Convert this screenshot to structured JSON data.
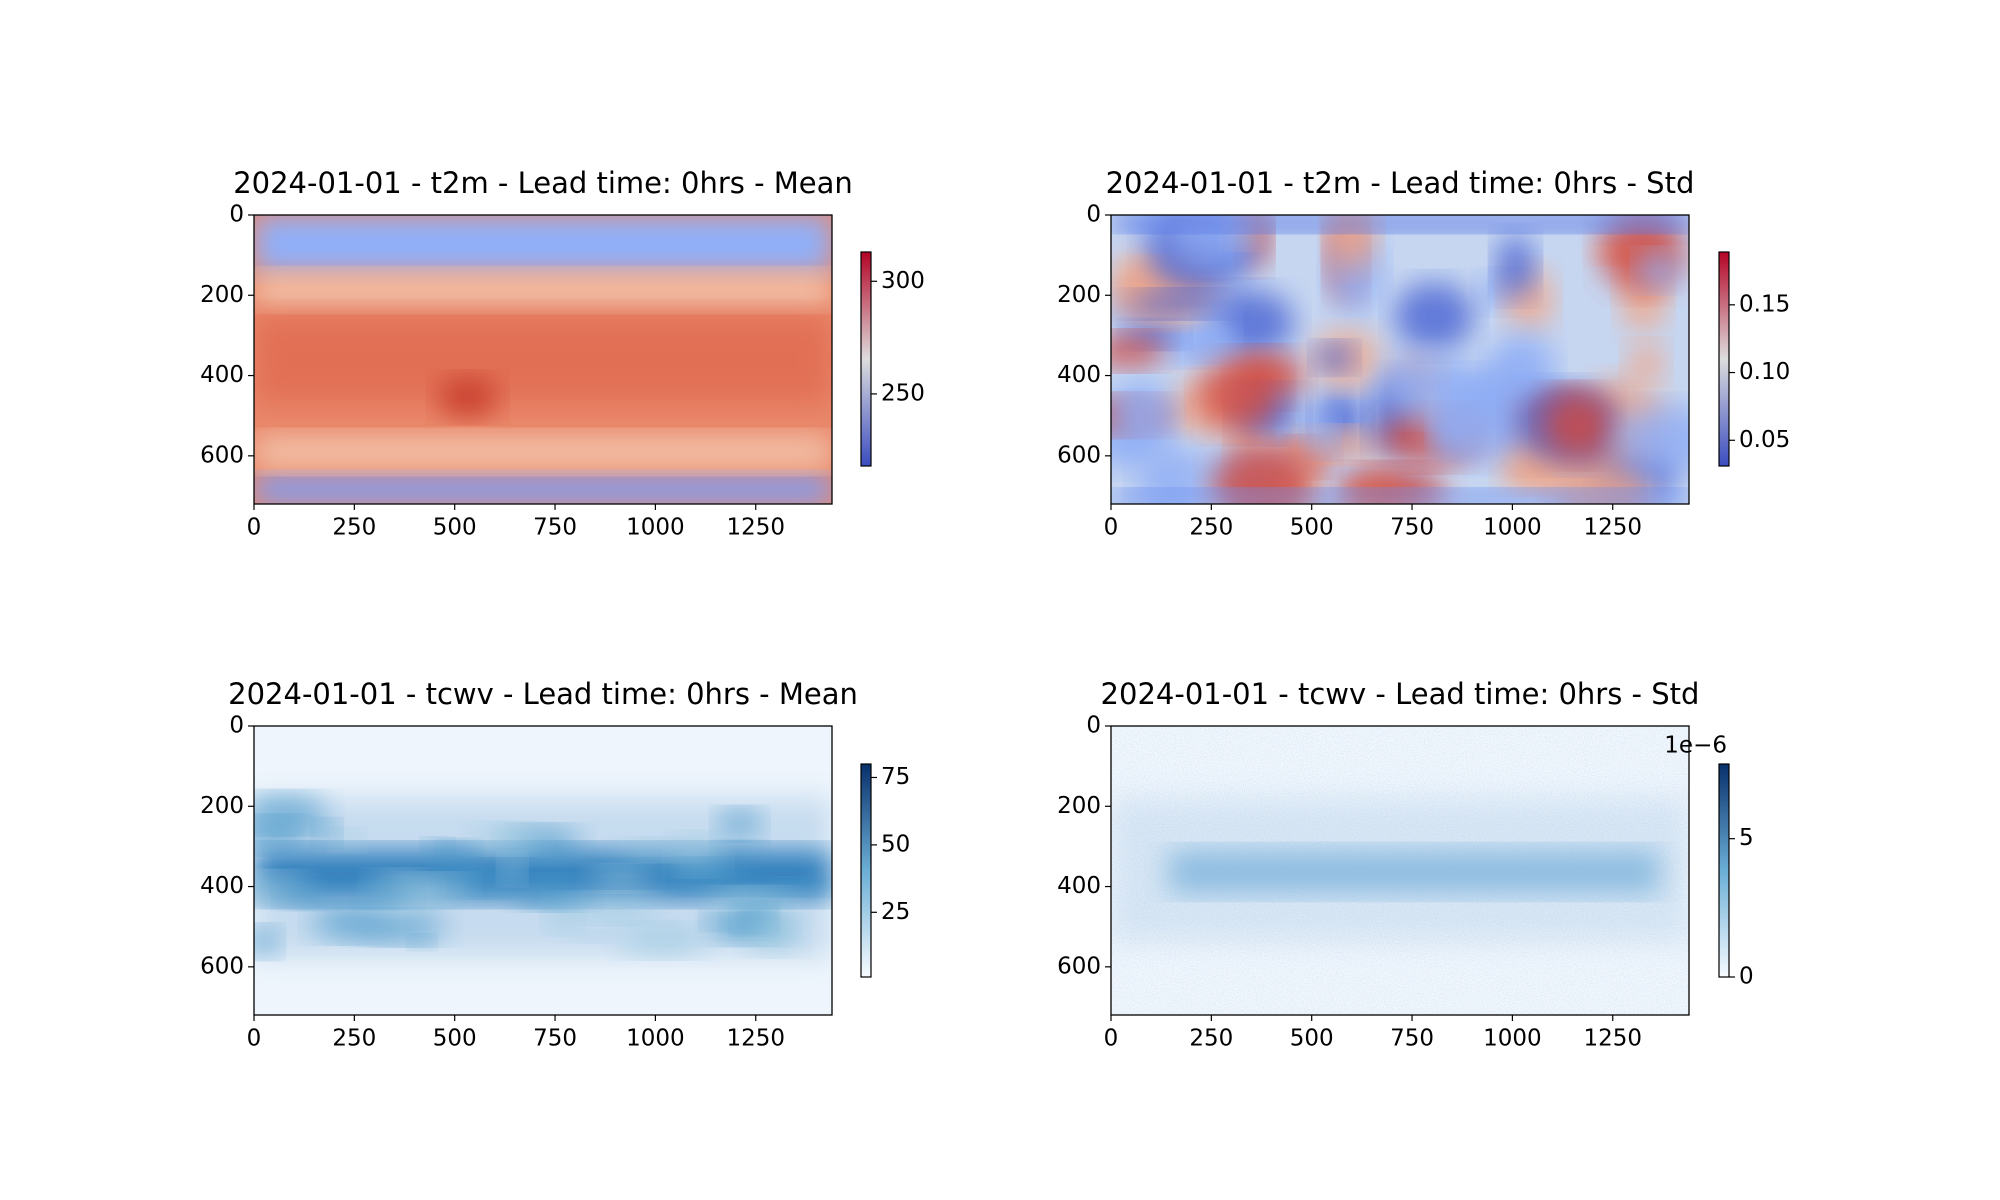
{
  "chart_data": [
    {
      "type": "heatmap",
      "title": "2024-01-01 - t2m - Lead time: 0hrs - Mean",
      "xlim": [
        0,
        1440
      ],
      "ylim": [
        720,
        0
      ],
      "xticks": [
        0,
        250,
        500,
        750,
        1000,
        1250
      ],
      "yticks": [
        0,
        200,
        400,
        600
      ],
      "colorbar": {
        "lim": [
          218,
          313
        ],
        "ticks": [
          250,
          300
        ],
        "colors": [
          "#3b4cc0",
          "#dddddd",
          "#b40426"
        ]
      }
    },
    {
      "type": "heatmap",
      "title": "2024-01-01 - t2m - Lead time: 0hrs - Std",
      "xlim": [
        0,
        1440
      ],
      "ylim": [
        720,
        0
      ],
      "xticks": [
        0,
        250,
        500,
        750,
        1000,
        1250
      ],
      "yticks": [
        0,
        200,
        400,
        600
      ],
      "colorbar": {
        "lim": [
          0.031,
          0.189
        ],
        "ticks": [
          0.05,
          {
            "value": 0.1,
            "label": "0.10"
          },
          0.15
        ],
        "colors": [
          "#3b4cc0",
          "#dddddd",
          "#b40426"
        ]
      }
    },
    {
      "type": "heatmap",
      "title": "2024-01-01 - tcwv - Lead time: 0hrs - Mean",
      "xlim": [
        0,
        1440
      ],
      "ylim": [
        720,
        0
      ],
      "xticks": [
        0,
        250,
        500,
        750,
        1000,
        1250
      ],
      "yticks": [
        0,
        200,
        400,
        600
      ],
      "colorbar": {
        "lim": [
          1,
          80
        ],
        "ticks": [
          25,
          50,
          75
        ],
        "colors": [
          "#f7fbff",
          "#6baed6",
          "#08306b"
        ]
      }
    },
    {
      "type": "heatmap",
      "title": "2024-01-01 - tcwv - Lead time: 0hrs - Std",
      "xlim": [
        0,
        1440
      ],
      "ylim": [
        720,
        0
      ],
      "xticks": [
        0,
        250,
        500,
        750,
        1000,
        1250
      ],
      "yticks": [
        0,
        200,
        400,
        600
      ],
      "colorbar": {
        "lim": [
          0,
          7.7
        ],
        "ticks": [
          0,
          5
        ],
        "offset_label": "1e−6",
        "colors": [
          "#f7fbff",
          "#6baed6",
          "#08306b"
        ]
      }
    }
  ]
}
